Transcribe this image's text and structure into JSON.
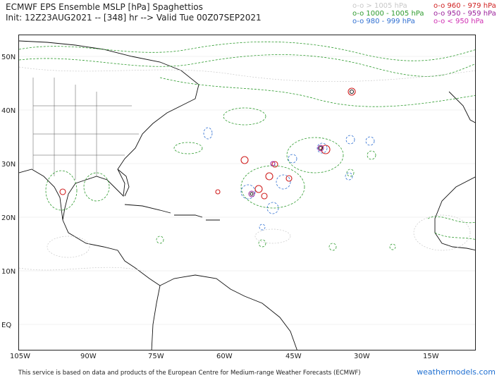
{
  "header": {
    "title": "ECMWF EPS Ensemble MSLP [hPa] Spaghettios",
    "subtitle": "Init: 12Z23AUG2021 -- [348] hr --> Valid Tue 00Z07SEP2021"
  },
  "legend": {
    "items": [
      {
        "label": "o-o > 1005 hPa",
        "color": "#c8c8c8"
      },
      {
        "label": "o-o 1000 - 1005 hPa",
        "color": "#2e9b2e"
      },
      {
        "label": "o-o 980 - 999 hPa",
        "color": "#2f6fd1"
      },
      {
        "label": "o-o 960 - 979 hPa",
        "color": "#d02020"
      },
      {
        "label": "o-o 950 - 959 hPa",
        "color": "#9a1f9a"
      },
      {
        "label": "o-o < 950 hPa",
        "color": "#d02fb3"
      }
    ]
  },
  "axes": {
    "lat_labels": [
      "50N",
      "40N",
      "30N",
      "20N",
      "10N",
      "EQ"
    ],
    "lon_labels": [
      "105W",
      "90W",
      "75W",
      "60W",
      "45W",
      "30W",
      "15W"
    ]
  },
  "footer": {
    "credit": "This service is based on data and products of the European Centre for Medium-range Weather Forecasts (ECMWF)",
    "brand": "weathermodels.com"
  }
}
